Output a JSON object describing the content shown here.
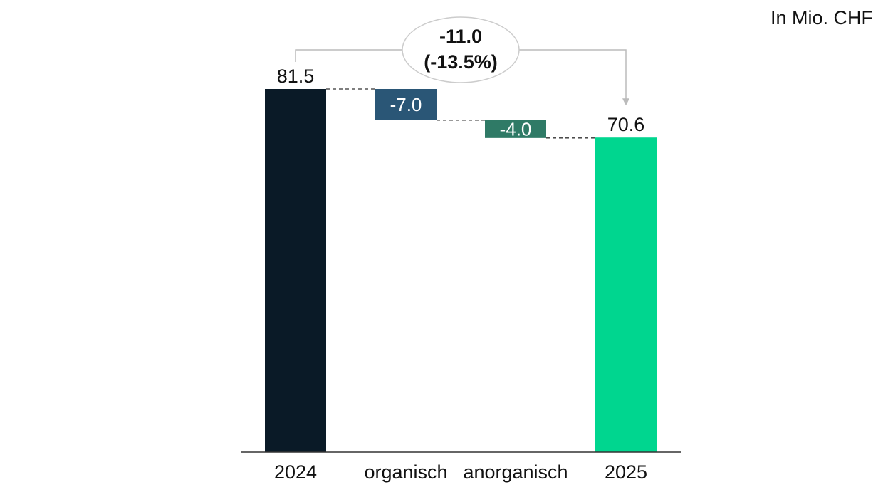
{
  "unit_label": "In Mio. CHF",
  "chart_data": {
    "type": "bar",
    "subtype": "waterfall",
    "categories": [
      "2024",
      "organisch",
      "anorganisch",
      "2025"
    ],
    "steps": [
      {
        "category": "2024",
        "kind": "total",
        "value": 81.5,
        "label": "81.5"
      },
      {
        "category": "organisch",
        "kind": "delta",
        "value": -7.0,
        "label": "-7.0"
      },
      {
        "category": "anorganisch",
        "kind": "delta",
        "value": -4.0,
        "label": "-4.0"
      },
      {
        "category": "2025",
        "kind": "total",
        "value": 70.6,
        "label": "70.6"
      }
    ],
    "change_annotation": {
      "from": "2024",
      "to": "2025",
      "value_label": "-11.0",
      "percent_label": "(-13.5%)"
    },
    "ylim": [
      0,
      81.5
    ],
    "grid": false,
    "colors": {
      "2024": "#0a1a27",
      "organisch": "#2a5676",
      "anorganisch": "#2f7a66",
      "2025": "#00d68f",
      "connector": "#333333",
      "arrow": "#bbbbbb",
      "axis": "#333333"
    }
  }
}
